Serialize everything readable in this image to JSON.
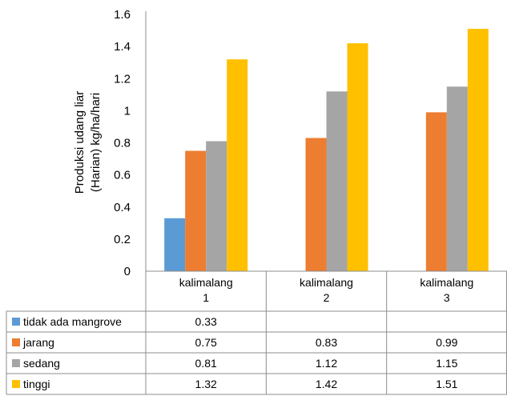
{
  "chart_data": {
    "type": "bar",
    "ylabel_lines": [
      "Produksi udang liar",
      "(Harian) kg/ha/hari"
    ],
    "ylim": [
      0,
      1.6
    ],
    "yticks": [
      "0",
      "0.2",
      "0.4",
      "0.6",
      "0.8",
      "1",
      "1.2",
      "1.4",
      "1.6"
    ],
    "categories": [
      [
        "kalimalang",
        "1"
      ],
      [
        "kalimalang",
        "2"
      ],
      [
        "kalimalang",
        "3"
      ]
    ],
    "grid": false,
    "legend_placement": "data-table-left",
    "series": [
      {
        "name": "tidak ada mangrove",
        "color": "#5B9BD5",
        "values": [
          0.33,
          null,
          null
        ],
        "labels": [
          "0.33",
          "",
          ""
        ]
      },
      {
        "name": "jarang",
        "color": "#ED7D31",
        "values": [
          0.75,
          0.83,
          0.99
        ],
        "labels": [
          "0.75",
          "0.83",
          "0.99"
        ]
      },
      {
        "name": "sedang",
        "color": "#A5A5A5",
        "values": [
          0.81,
          1.12,
          1.15
        ],
        "labels": [
          "0.81",
          "1.12",
          "1.15"
        ]
      },
      {
        "name": "tinggi",
        "color": "#FFC000",
        "values": [
          1.32,
          1.42,
          1.51
        ],
        "labels": [
          "1.32",
          "1.42",
          "1.51"
        ]
      }
    ]
  }
}
